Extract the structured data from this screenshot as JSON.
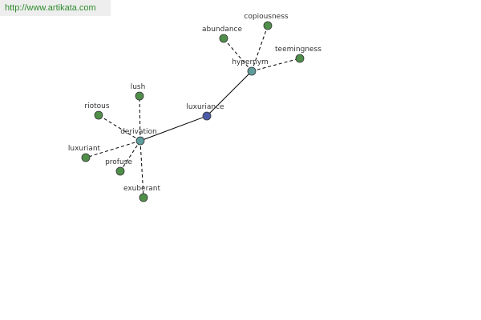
{
  "header": {
    "url": "http://www.artikata.com"
  },
  "nodes": [
    {
      "label": "luxuriance"
    },
    {
      "label": "hypernym"
    },
    {
      "label": "derivation"
    },
    {
      "label": "abundance"
    },
    {
      "label": "copiousness"
    },
    {
      "label": "teemingness"
    },
    {
      "label": "lush"
    },
    {
      "label": "riotous"
    },
    {
      "label": "luxuriant"
    },
    {
      "label": "profuse"
    },
    {
      "label": "exuberant"
    }
  ]
}
